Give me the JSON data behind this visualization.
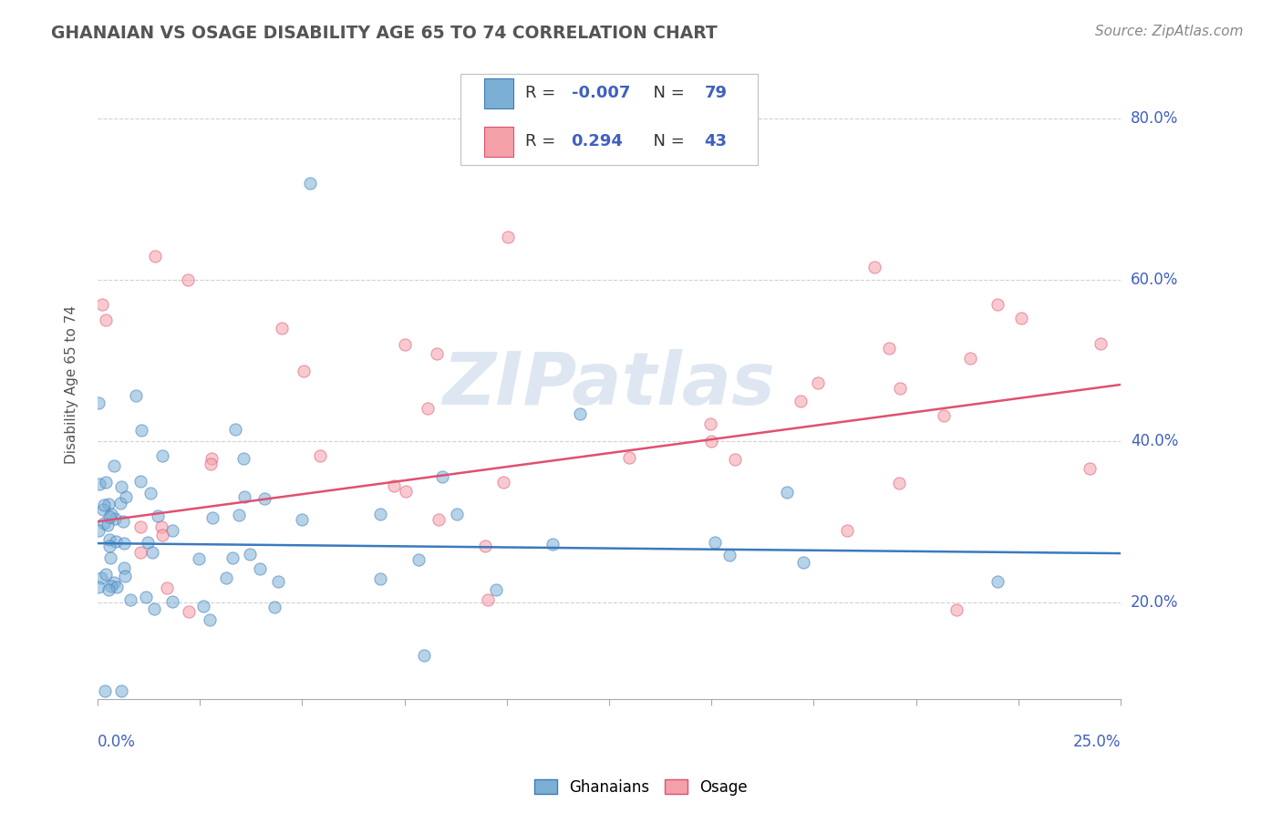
{
  "title": "GHANAIAN VS OSAGE DISABILITY AGE 65 TO 74 CORRELATION CHART",
  "source": "Source: ZipAtlas.com",
  "ylabel": "Disability Age 65 to 74",
  "x_min": 0.0,
  "x_max": 0.25,
  "y_min": 0.08,
  "y_max": 0.86,
  "ghanaian_R": -0.007,
  "ghanaian_N": 79,
  "osage_R": 0.294,
  "osage_N": 43,
  "ghanaian_dot_color": "#7bafd4",
  "osage_dot_color": "#f4a0a8",
  "ghanaian_line_color": "#3a7abf",
  "osage_line_color": "#e05070",
  "legend_R_color": "#4060c0",
  "legend_N_color": "#4060c0",
  "watermark": "ZIPatlas",
  "watermark_color": "#c8d8e8",
  "y_ticks": [
    0.2,
    0.4,
    0.6,
    0.8
  ],
  "y_tick_labels": [
    "20.0%",
    "40.0%",
    "60.0%",
    "80.0%"
  ],
  "grid_color": "#cccccc",
  "title_color": "#555555",
  "source_color": "#888888",
  "axis_label_color": "#4060c0"
}
